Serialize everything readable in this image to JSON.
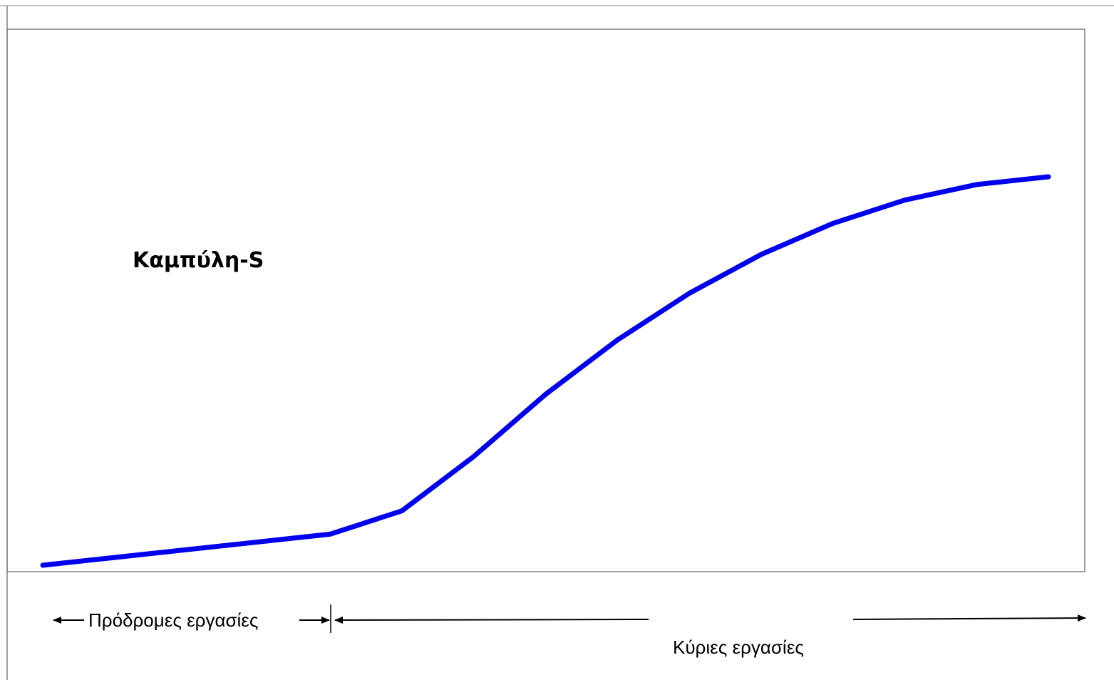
{
  "chart_data": {
    "type": "line",
    "title": "Καμπύλη-S",
    "xlabel": "",
    "ylabel": "",
    "grid": false,
    "legend": "none",
    "x": [
      0,
      1,
      2,
      3,
      4,
      5,
      6,
      7,
      8,
      9,
      10,
      11,
      12,
      13,
      14
    ],
    "xlim": [
      0,
      14
    ],
    "ylim": [
      0,
      100
    ],
    "series": [
      {
        "values": [
          0,
          2,
          4,
          6,
          8,
          14,
          28,
          44,
          58,
          70,
          80,
          88,
          94,
          98,
          100
        ],
        "color": "#0000ee"
      }
    ],
    "phases": [
      {
        "label": "Πρόδρομες εργασίες",
        "x_start": 0,
        "x_end": 4
      },
      {
        "label": "Κύριες εργασίες",
        "x_start": 4,
        "x_end": 14
      }
    ],
    "colors": {
      "line": "#0000ee",
      "frame": "#808080",
      "annotation": "#000000"
    }
  }
}
